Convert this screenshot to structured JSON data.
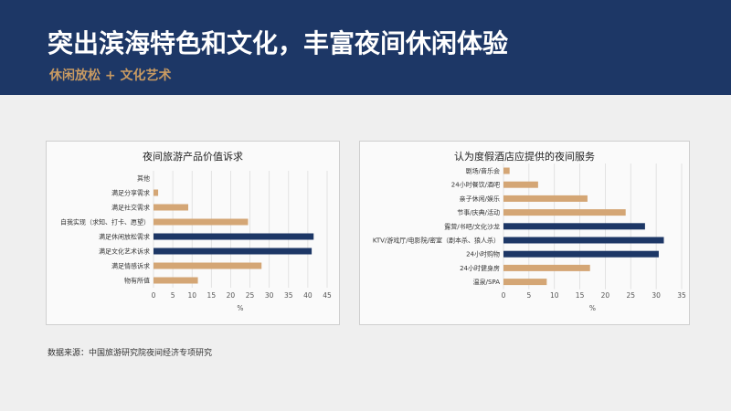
{
  "header": {
    "title": "突出滨海特色和文化，丰富夜间休闲体验",
    "subtitle": "休闲放松 + 文化艺术"
  },
  "colors": {
    "header_bg": "#1d3766",
    "accent_gold": "#c89a62",
    "bar_navy": "#1d3766",
    "bar_tan": "#d4a675"
  },
  "footer": {
    "source": "数据来源：中国旅游研究院夜间经济专项研究"
  },
  "chart_data": [
    {
      "type": "bar",
      "orientation": "horizontal",
      "title": "夜间旅游产品价值诉求",
      "xlabel": "%",
      "ylabel": "",
      "xlim": [
        0,
        45
      ],
      "xticks": [
        0,
        5,
        10,
        15,
        20,
        25,
        30,
        35,
        40,
        45
      ],
      "grid": true,
      "categories": [
        "其他",
        "满足分享需求",
        "满足社交需求",
        "自我实现（求知、打卡、愿望）",
        "满足休闲放松需求",
        "满足文化艺术诉求",
        "满足情感诉求",
        "物有所值"
      ],
      "values": [
        0,
        1.2,
        9,
        24.5,
        41.5,
        41,
        28,
        11.5
      ],
      "highlight": [
        false,
        false,
        false,
        false,
        true,
        true,
        false,
        false
      ]
    },
    {
      "type": "bar",
      "orientation": "horizontal",
      "title": "认为度假酒店应提供的夜间服务",
      "xlabel": "%",
      "ylabel": "",
      "xlim": [
        0,
        35
      ],
      "xticks": [
        0,
        5,
        10,
        15,
        20,
        25,
        30,
        35
      ],
      "grid": true,
      "categories": [
        "剧场/音乐会",
        "24小时餐饮/酒吧",
        "亲子休闲/娱乐",
        "节事/庆典/活动",
        "露营/书吧/文化沙龙",
        "KTV/游戏厅/电影院/密室（剧本杀、狼人杀）",
        "24小时购物",
        "24小时健身房",
        "温泉/SPA"
      ],
      "values": [
        1.2,
        6.8,
        16.5,
        24,
        27.8,
        31.5,
        30.5,
        17,
        8.5
      ],
      "highlight": [
        false,
        false,
        false,
        false,
        true,
        true,
        true,
        false,
        false
      ]
    }
  ]
}
